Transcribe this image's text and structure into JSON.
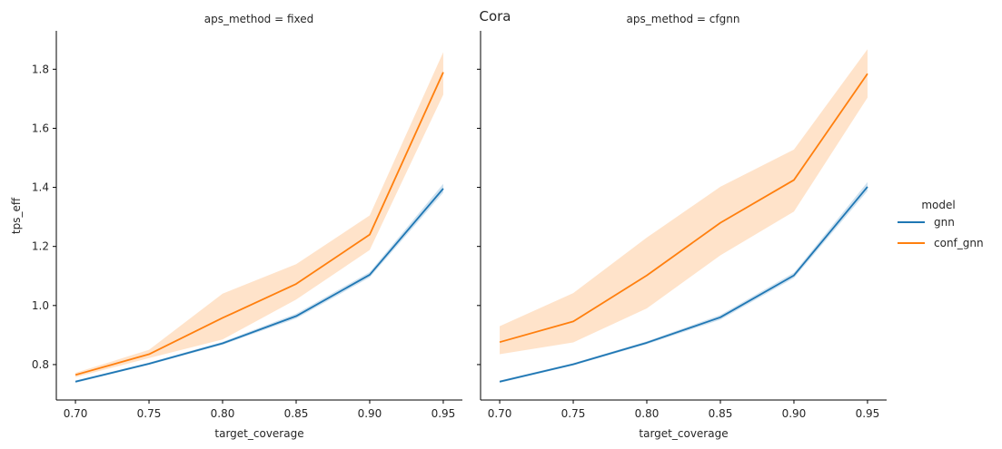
{
  "chart_data": {
    "type": "line",
    "suptitle": "Cora",
    "xlabel": "target_coverage",
    "ylabel": "tps_eff",
    "xlim": [
      0.687,
      0.963
    ],
    "ylim": [
      0.68,
      1.93
    ],
    "xticks": [
      0.7,
      0.75,
      0.8,
      0.85,
      0.9,
      0.95
    ],
    "xtick_labels": [
      "0.70",
      "0.75",
      "0.80",
      "0.85",
      "0.90",
      "0.95"
    ],
    "yticks": [
      0.8,
      1.0,
      1.2,
      1.4,
      1.6,
      1.8
    ],
    "ytick_labels": [
      "0.8",
      "1.0",
      "1.2",
      "1.4",
      "1.6",
      "1.8"
    ],
    "legend": {
      "title": "model",
      "placement": "outside-right",
      "entries": [
        {
          "label": "gnn",
          "color": "#1f77b4"
        },
        {
          "label": "conf_gnn",
          "color": "#ff7f0e"
        }
      ]
    },
    "panels": [
      {
        "title": "aps_method = fixed",
        "x": [
          0.7,
          0.75,
          0.8,
          0.85,
          0.9,
          0.95
        ],
        "series": [
          {
            "name": "gnn",
            "color": "#1f77b4",
            "values": [
              0.742,
              0.803,
              0.872,
              0.964,
              1.104,
              1.396
            ],
            "ci_low": [
              0.738,
              0.799,
              0.867,
              0.956,
              1.095,
              1.382
            ],
            "ci_high": [
              0.746,
              0.807,
              0.877,
              0.972,
              1.113,
              1.412
            ]
          },
          {
            "name": "conf_gnn",
            "color": "#ff7f0e",
            "values": [
              0.765,
              0.835,
              0.958,
              1.073,
              1.24,
              1.79
            ],
            "ci_low": [
              0.757,
              0.822,
              0.885,
              1.02,
              1.188,
              1.714
            ],
            "ci_high": [
              0.772,
              0.85,
              1.04,
              1.14,
              1.305,
              1.858
            ]
          }
        ]
      },
      {
        "title": "aps_method = cfgnn",
        "x": [
          0.7,
          0.75,
          0.8,
          0.85,
          0.9,
          0.95
        ],
        "series": [
          {
            "name": "gnn",
            "color": "#1f77b4",
            "values": [
              0.742,
              0.801,
              0.874,
              0.96,
              1.102,
              1.402
            ],
            "ci_low": [
              0.738,
              0.797,
              0.869,
              0.952,
              1.093,
              1.388
            ],
            "ci_high": [
              0.746,
              0.805,
              0.879,
              0.968,
              1.111,
              1.418
            ]
          },
          {
            "name": "conf_gnn",
            "color": "#ff7f0e",
            "values": [
              0.876,
              0.946,
              1.102,
              1.28,
              1.425,
              1.785
            ],
            "ci_low": [
              0.835,
              0.875,
              0.99,
              1.17,
              1.318,
              1.704
            ],
            "ci_high": [
              0.93,
              1.042,
              1.23,
              1.402,
              1.528,
              1.868
            ]
          }
        ]
      }
    ]
  }
}
